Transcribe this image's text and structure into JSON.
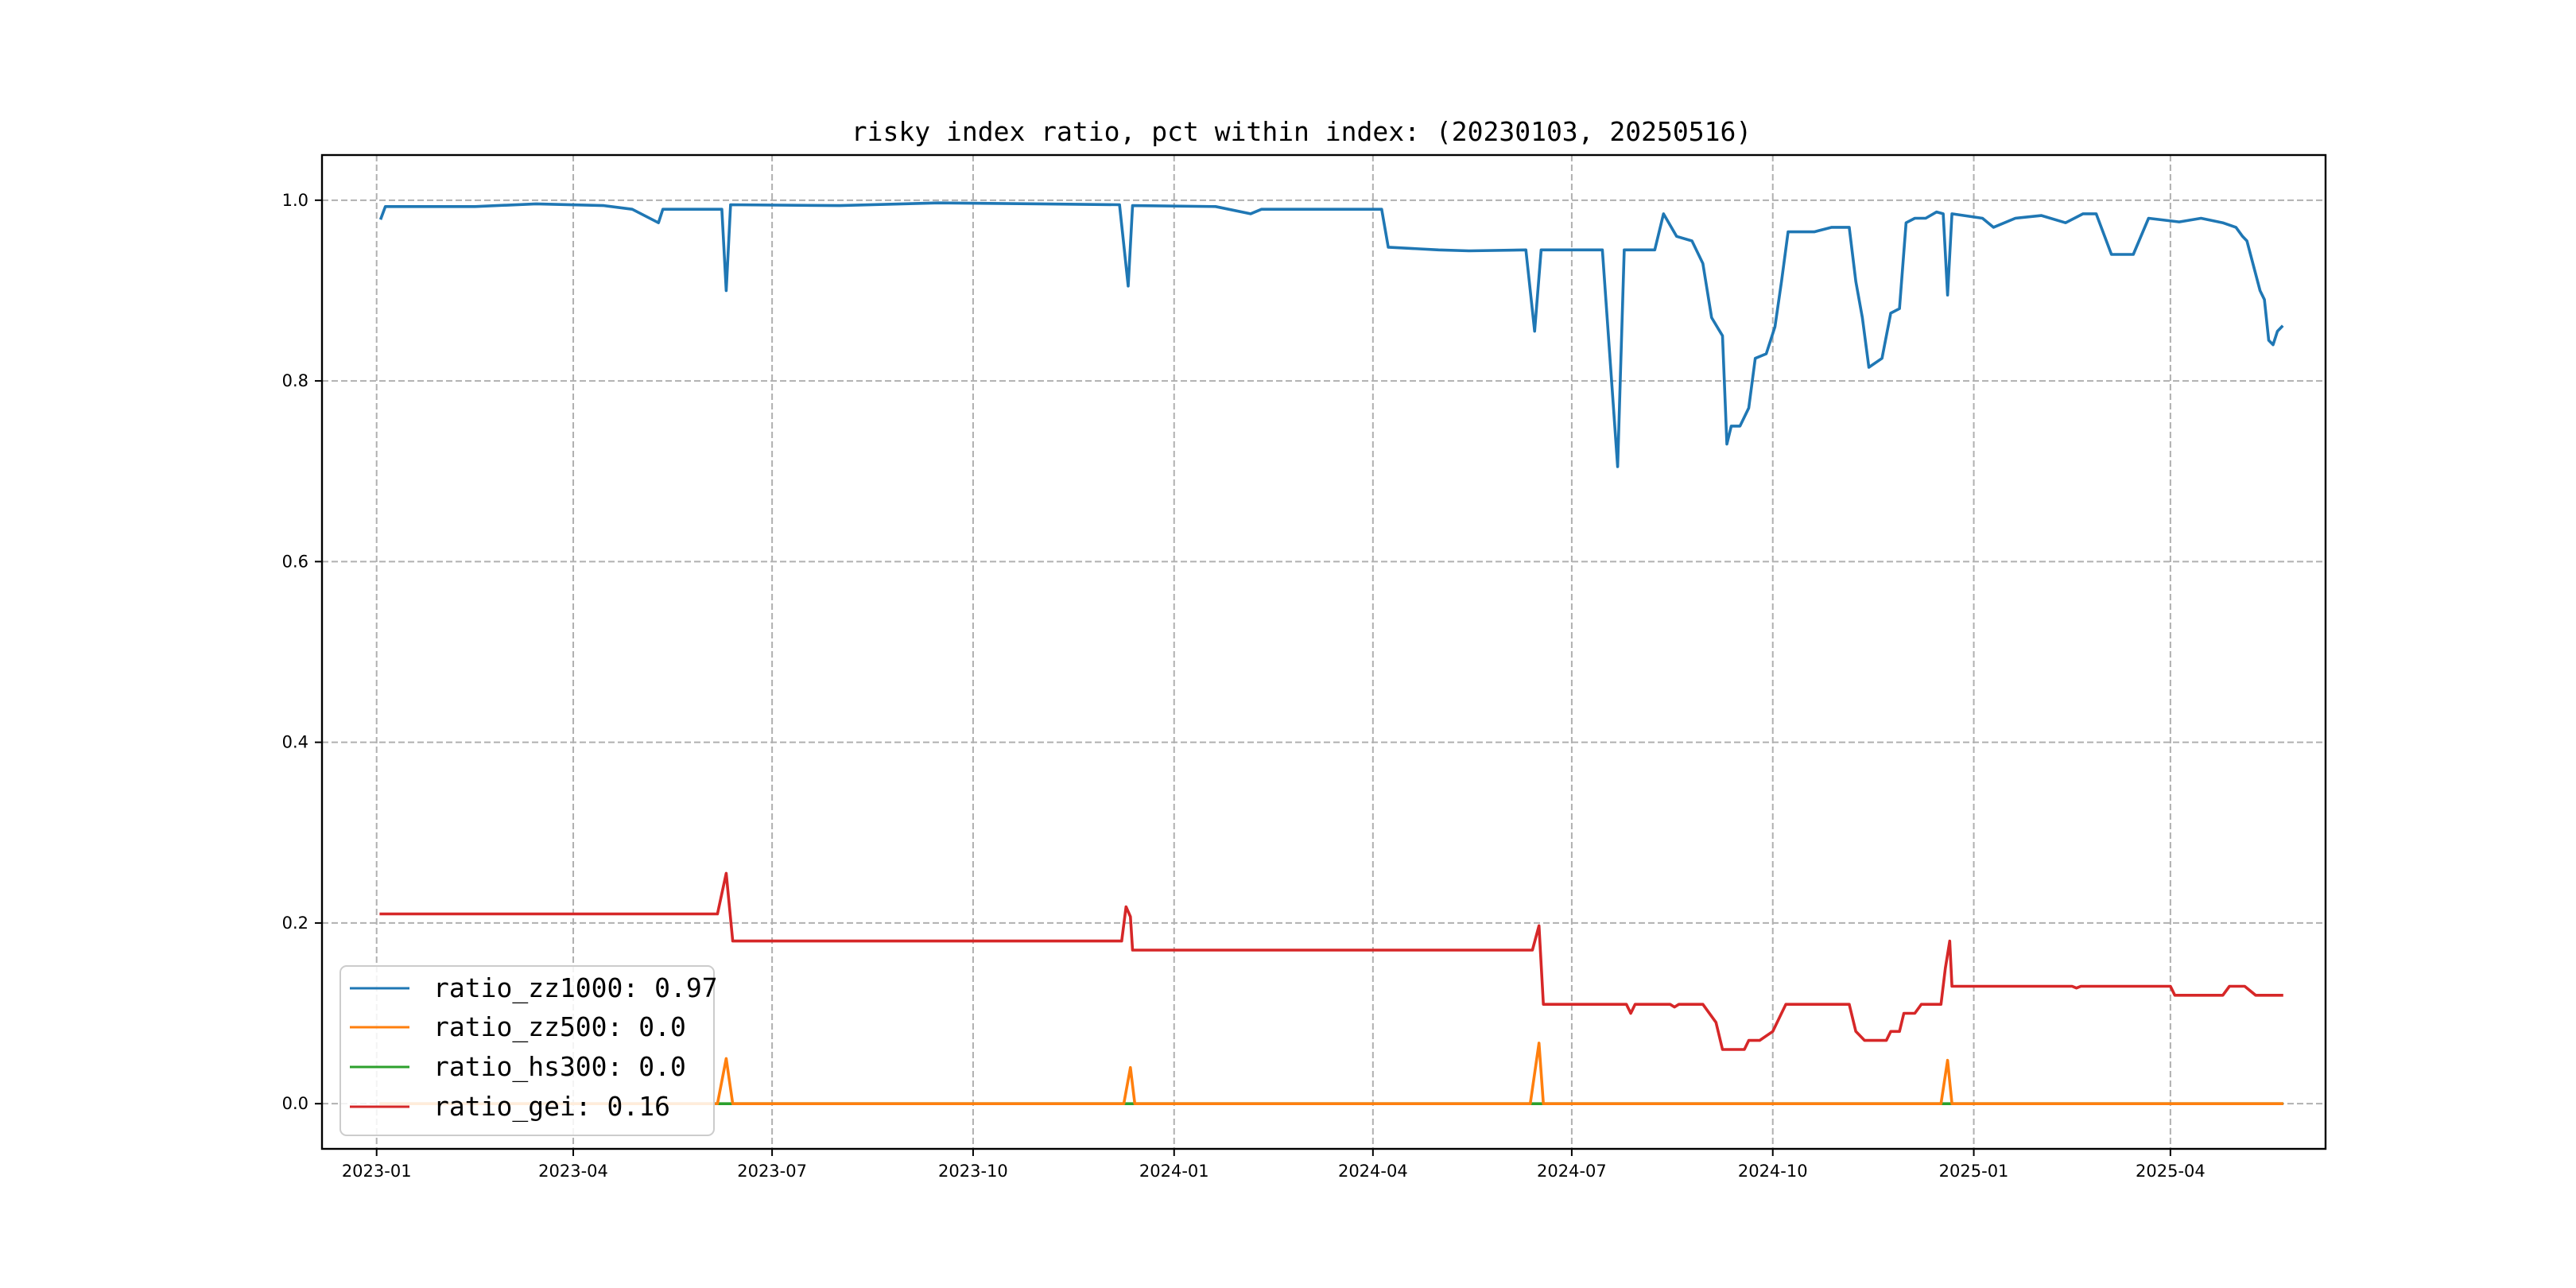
{
  "chart_data": {
    "type": "line",
    "title": "risky index ratio, pct within index: (20230103, 20250516)",
    "xlabel": "",
    "ylabel": "",
    "x_range": [
      "2022-12-07",
      "2025-06-11"
    ],
    "ylim": [
      -0.05,
      1.05
    ],
    "grid": true,
    "legend_position": "lower-left",
    "x_ticks": [
      "2023-01",
      "2023-04",
      "2023-07",
      "2023-10",
      "2024-01",
      "2024-04",
      "2024-07",
      "2024-10",
      "2025-01",
      "2025-04"
    ],
    "y_ticks": [
      0.0,
      0.2,
      0.4,
      0.6,
      0.8,
      1.0
    ],
    "y_tick_labels": [
      "0.0",
      "0.2",
      "0.4",
      "0.6",
      "0.8",
      "1.0"
    ],
    "series": [
      {
        "name": "ratio_zz1000",
        "legend_label": "ratio_zz1000: 0.97",
        "color": "#1f77b4",
        "points": [
          [
            "2023-01-03",
            0.98
          ],
          [
            "2023-01-05",
            0.993
          ],
          [
            "2023-02-15",
            0.993
          ],
          [
            "2023-03-15",
            0.996
          ],
          [
            "2023-04-15",
            0.994
          ],
          [
            "2023-04-28",
            0.99
          ],
          [
            "2023-05-10",
            0.975
          ],
          [
            "2023-05-12",
            0.99
          ],
          [
            "2023-06-08",
            0.99
          ],
          [
            "2023-06-10",
            0.9
          ],
          [
            "2023-06-12",
            0.995
          ],
          [
            "2023-08-01",
            0.994
          ],
          [
            "2023-09-15",
            0.997
          ],
          [
            "2023-11-01",
            0.996
          ],
          [
            "2023-12-07",
            0.995
          ],
          [
            "2023-12-11",
            0.905
          ],
          [
            "2023-12-13",
            0.994
          ],
          [
            "2024-01-20",
            0.993
          ],
          [
            "2024-02-05",
            0.985
          ],
          [
            "2024-02-10",
            0.99
          ],
          [
            "2024-03-10",
            0.99
          ],
          [
            "2024-04-05",
            0.99
          ],
          [
            "2024-04-08",
            0.948
          ],
          [
            "2024-05-01",
            0.945
          ],
          [
            "2024-05-15",
            0.944
          ],
          [
            "2024-06-10",
            0.945
          ],
          [
            "2024-06-14",
            0.855
          ],
          [
            "2024-06-17",
            0.945
          ],
          [
            "2024-07-15",
            0.945
          ],
          [
            "2024-07-22",
            0.705
          ],
          [
            "2024-07-25",
            0.945
          ],
          [
            "2024-08-08",
            0.945
          ],
          [
            "2024-08-12",
            0.985
          ],
          [
            "2024-08-18",
            0.96
          ],
          [
            "2024-08-25",
            0.955
          ],
          [
            "2024-08-30",
            0.93
          ],
          [
            "2024-09-03",
            0.87
          ],
          [
            "2024-09-08",
            0.85
          ],
          [
            "2024-09-10",
            0.73
          ],
          [
            "2024-09-12",
            0.75
          ],
          [
            "2024-09-16",
            0.75
          ],
          [
            "2024-09-20",
            0.77
          ],
          [
            "2024-09-23",
            0.825
          ],
          [
            "2024-09-28",
            0.83
          ],
          [
            "2024-10-02",
            0.86
          ],
          [
            "2024-10-05",
            0.91
          ],
          [
            "2024-10-08",
            0.965
          ],
          [
            "2024-10-20",
            0.965
          ],
          [
            "2024-10-28",
            0.97
          ],
          [
            "2024-11-05",
            0.97
          ],
          [
            "2024-11-08",
            0.91
          ],
          [
            "2024-11-11",
            0.87
          ],
          [
            "2024-11-14",
            0.815
          ],
          [
            "2024-11-20",
            0.825
          ],
          [
            "2024-11-24",
            0.875
          ],
          [
            "2024-11-28",
            0.88
          ],
          [
            "2024-12-01",
            0.975
          ],
          [
            "2024-12-05",
            0.98
          ],
          [
            "2024-12-10",
            0.98
          ],
          [
            "2024-12-15",
            0.987
          ],
          [
            "2024-12-18",
            0.985
          ],
          [
            "2024-12-20",
            0.895
          ],
          [
            "2024-12-22",
            0.985
          ],
          [
            "2025-01-05",
            0.98
          ],
          [
            "2025-01-10",
            0.97
          ],
          [
            "2025-01-20",
            0.98
          ],
          [
            "2025-02-01",
            0.983
          ],
          [
            "2025-02-12",
            0.975
          ],
          [
            "2025-02-20",
            0.985
          ],
          [
            "2025-02-26",
            0.985
          ],
          [
            "2025-03-05",
            0.94
          ],
          [
            "2025-03-15",
            0.94
          ],
          [
            "2025-03-22",
            0.98
          ],
          [
            "2025-04-05",
            0.976
          ],
          [
            "2025-04-15",
            0.98
          ],
          [
            "2025-04-25",
            0.975
          ],
          [
            "2025-05-01",
            0.97
          ],
          [
            "2025-05-04",
            0.96
          ],
          [
            "2025-05-06",
            0.955
          ],
          [
            "2025-05-12",
            0.9
          ],
          [
            "2025-05-14",
            0.89
          ],
          [
            "2025-05-16",
            0.845
          ],
          [
            "2025-05-18",
            0.84
          ],
          [
            "2025-05-20",
            0.855
          ],
          [
            "2025-05-22",
            0.86
          ]
        ]
      },
      {
        "name": "ratio_zz500",
        "legend_label": "ratio_zz500: 0.0",
        "color": "#ff7f0e",
        "points": [
          [
            "2023-01-03",
            0.0
          ],
          [
            "2023-06-06",
            0.0
          ],
          [
            "2023-06-10",
            0.05
          ],
          [
            "2023-06-13",
            0.0
          ],
          [
            "2023-12-09",
            0.0
          ],
          [
            "2023-12-12",
            0.04
          ],
          [
            "2023-12-14",
            0.0
          ],
          [
            "2024-06-12",
            0.0
          ],
          [
            "2024-06-16",
            0.067
          ],
          [
            "2024-06-18",
            0.0
          ],
          [
            "2024-12-17",
            0.0
          ],
          [
            "2024-12-20",
            0.048
          ],
          [
            "2024-12-22",
            0.0
          ],
          [
            "2025-05-22",
            0.0
          ]
        ]
      },
      {
        "name": "ratio_hs300",
        "legend_label": "ratio_hs300: 0.0",
        "color": "#2ca02c",
        "points": [
          [
            "2023-01-03",
            0.0
          ],
          [
            "2025-05-22",
            0.0
          ]
        ]
      },
      {
        "name": "ratio_gei",
        "legend_label": "ratio_gei: 0.16",
        "color": "#d62728",
        "points": [
          [
            "2023-01-03",
            0.21
          ],
          [
            "2023-06-06",
            0.21
          ],
          [
            "2023-06-10",
            0.255
          ],
          [
            "2023-06-13",
            0.18
          ],
          [
            "2023-12-08",
            0.18
          ],
          [
            "2023-12-10",
            0.218
          ],
          [
            "2023-12-12",
            0.207
          ],
          [
            "2023-12-13",
            0.17
          ],
          [
            "2024-06-13",
            0.17
          ],
          [
            "2024-06-16",
            0.197
          ],
          [
            "2024-06-18",
            0.11
          ],
          [
            "2024-07-26",
            0.11
          ],
          [
            "2024-07-28",
            0.1
          ],
          [
            "2024-07-30",
            0.11
          ],
          [
            "2024-08-15",
            0.11
          ],
          [
            "2024-08-17",
            0.107
          ],
          [
            "2024-08-19",
            0.11
          ],
          [
            "2024-08-30",
            0.11
          ],
          [
            "2024-09-05",
            0.09
          ],
          [
            "2024-09-08",
            0.06
          ],
          [
            "2024-09-18",
            0.06
          ],
          [
            "2024-09-20",
            0.07
          ],
          [
            "2024-09-25",
            0.07
          ],
          [
            "2024-10-01",
            0.08
          ],
          [
            "2024-10-05",
            0.1
          ],
          [
            "2024-10-07",
            0.11
          ],
          [
            "2024-11-05",
            0.11
          ],
          [
            "2024-11-08",
            0.08
          ],
          [
            "2024-11-12",
            0.07
          ],
          [
            "2024-11-22",
            0.07
          ],
          [
            "2024-11-24",
            0.08
          ],
          [
            "2024-11-28",
            0.08
          ],
          [
            "2024-11-30",
            0.1
          ],
          [
            "2024-12-05",
            0.1
          ],
          [
            "2024-12-08",
            0.11
          ],
          [
            "2024-12-17",
            0.11
          ],
          [
            "2024-12-19",
            0.15
          ],
          [
            "2024-12-21",
            0.18
          ],
          [
            "2024-12-22",
            0.13
          ],
          [
            "2025-02-15",
            0.13
          ],
          [
            "2025-02-17",
            0.128
          ],
          [
            "2025-02-19",
            0.13
          ],
          [
            "2025-04-01",
            0.13
          ],
          [
            "2025-04-03",
            0.12
          ],
          [
            "2025-04-25",
            0.12
          ],
          [
            "2025-04-28",
            0.13
          ],
          [
            "2025-05-05",
            0.13
          ],
          [
            "2025-05-10",
            0.12
          ],
          [
            "2025-05-22",
            0.12
          ]
        ]
      }
    ]
  }
}
